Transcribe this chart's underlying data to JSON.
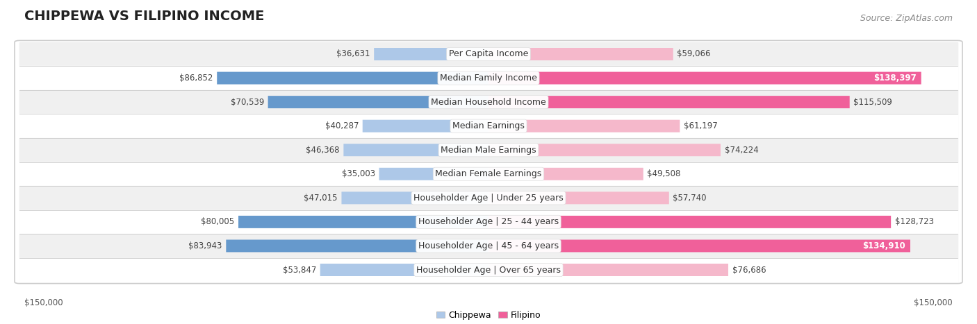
{
  "title": "CHIPPEWA VS FILIPINO INCOME",
  "source": "Source: ZipAtlas.com",
  "categories": [
    "Per Capita Income",
    "Median Family Income",
    "Median Household Income",
    "Median Earnings",
    "Median Male Earnings",
    "Median Female Earnings",
    "Householder Age | Under 25 years",
    "Householder Age | 25 - 44 years",
    "Householder Age | 45 - 64 years",
    "Householder Age | Over 65 years"
  ],
  "chippewa_values": [
    36631,
    86852,
    70539,
    40287,
    46368,
    35003,
    47015,
    80005,
    83943,
    53847
  ],
  "filipino_values": [
    59066,
    138397,
    115509,
    61197,
    74224,
    49508,
    57740,
    128723,
    134910,
    76686
  ],
  "chippewa_light_color": "#adc8e8",
  "chippewa_dark_color": "#6699cc",
  "filipino_light_color": "#f5b8cb",
  "filipino_dark_color": "#f0609a",
  "row_bg_light": "#f0f0f0",
  "row_bg_dark": "#e8e8e8",
  "chart_bg": "#f7f7f7",
  "axis_max": 150000,
  "legend_chippewa": "Chippewa",
  "legend_filipino": "Filipino",
  "title_fontsize": 14,
  "source_fontsize": 9,
  "label_fontsize": 9,
  "value_fontsize": 8.5,
  "inside_value_fontsize": 8.5
}
